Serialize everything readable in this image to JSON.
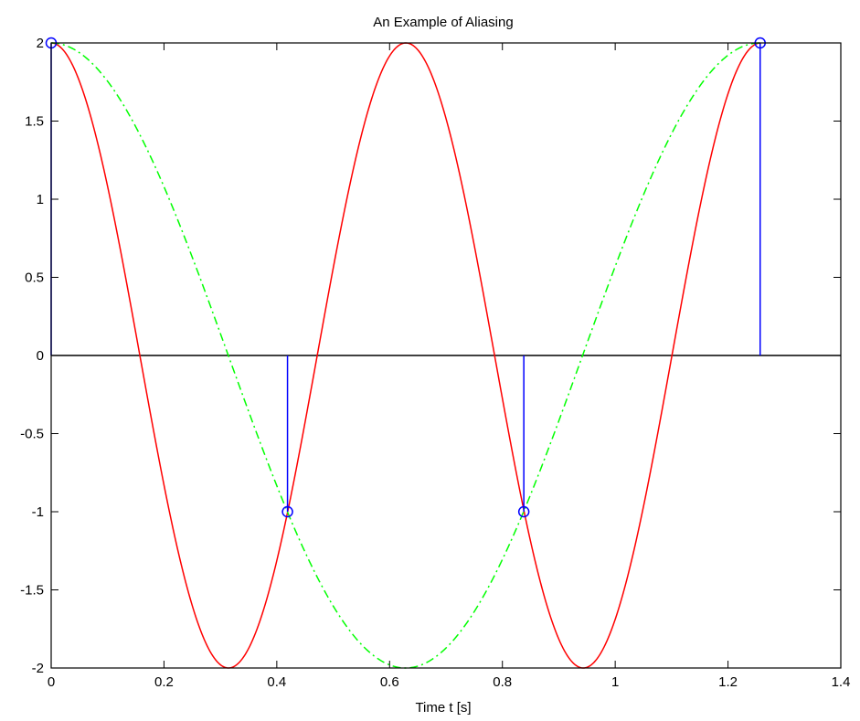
{
  "chart_data": {
    "type": "line",
    "title": "An Example of Aliasing",
    "xlabel": "Time t [s]",
    "ylabel": "",
    "xlim": [
      0,
      1.4
    ],
    "ylim": [
      -2,
      2
    ],
    "x_ticks": [
      0,
      0.2,
      0.4,
      0.6,
      0.8,
      1,
      1.2,
      1.4
    ],
    "x_tick_labels": [
      "0",
      "0.2",
      "0.4",
      "0.6",
      "0.8",
      "1",
      "1.2",
      "1.4"
    ],
    "y_ticks": [
      2,
      1.5,
      1,
      0.5,
      0,
      -0.5,
      -1,
      -1.5,
      -2
    ],
    "y_tick_labels": [
      "2",
      "1.5",
      "1",
      "0.5",
      "0",
      "-0.5",
      "-1",
      "-1.5",
      "-2"
    ],
    "grid": false,
    "zero_line": true,
    "series": [
      {
        "kind": "line",
        "style": "solid",
        "color": "#ff0000",
        "amplitude": 2,
        "frequency_hz": 1.59,
        "x_range": [
          0,
          1.257
        ]
      },
      {
        "kind": "line",
        "style": "dash-dot",
        "color": "#00ff00",
        "amplitude": 2,
        "frequency_hz": 0.796,
        "x_range": [
          0,
          1.257
        ]
      },
      {
        "kind": "stem",
        "color": "#0000ff",
        "x": [
          0,
          0.419,
          0.838,
          1.257
        ],
        "y": [
          2,
          -1,
          -1,
          2
        ]
      }
    ]
  }
}
